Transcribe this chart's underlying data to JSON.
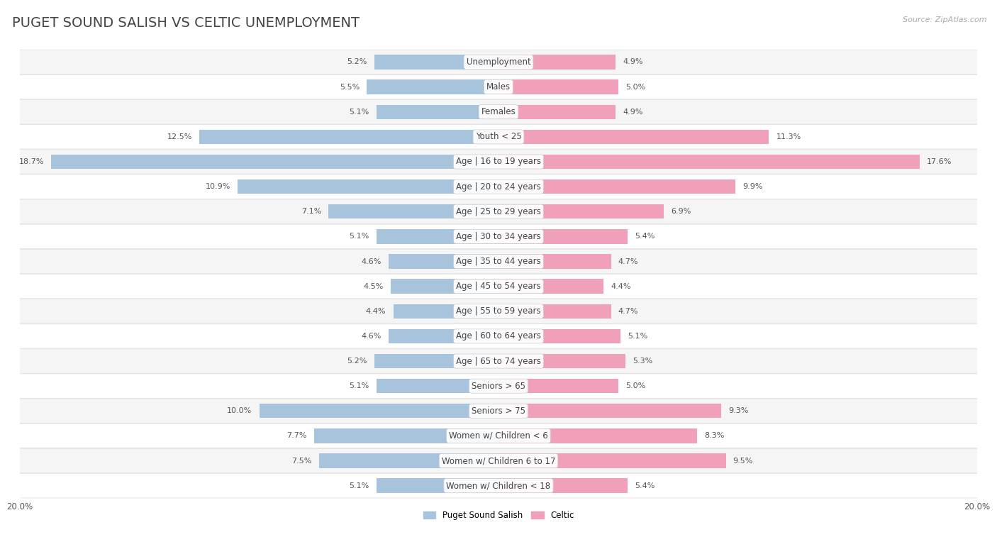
{
  "title": "PUGET SOUND SALISH VS CELTIC UNEMPLOYMENT",
  "source": "Source: ZipAtlas.com",
  "categories": [
    "Unemployment",
    "Males",
    "Females",
    "Youth < 25",
    "Age | 16 to 19 years",
    "Age | 20 to 24 years",
    "Age | 25 to 29 years",
    "Age | 30 to 34 years",
    "Age | 35 to 44 years",
    "Age | 45 to 54 years",
    "Age | 55 to 59 years",
    "Age | 60 to 64 years",
    "Age | 65 to 74 years",
    "Seniors > 65",
    "Seniors > 75",
    "Women w/ Children < 6",
    "Women w/ Children 6 to 17",
    "Women w/ Children < 18"
  ],
  "left_values": [
    5.2,
    5.5,
    5.1,
    12.5,
    18.7,
    10.9,
    7.1,
    5.1,
    4.6,
    4.5,
    4.4,
    4.6,
    5.2,
    5.1,
    10.0,
    7.7,
    7.5,
    5.1
  ],
  "right_values": [
    4.9,
    5.0,
    4.9,
    11.3,
    17.6,
    9.9,
    6.9,
    5.4,
    4.7,
    4.4,
    4.7,
    5.1,
    5.3,
    5.0,
    9.3,
    8.3,
    9.5,
    5.4
  ],
  "left_color": "#a8c4dc",
  "right_color": "#f0a0b8",
  "left_label": "Puget Sound Salish",
  "right_label": "Celtic",
  "max_val": 20.0,
  "bar_height": 0.58,
  "title_fontsize": 14,
  "label_fontsize": 8.5,
  "value_fontsize": 8.0,
  "bg_color": "#ffffff",
  "row_bg_odd": "#f5f5f5",
  "row_bg_even": "#ffffff",
  "text_color": "#555555",
  "title_color": "#444444"
}
